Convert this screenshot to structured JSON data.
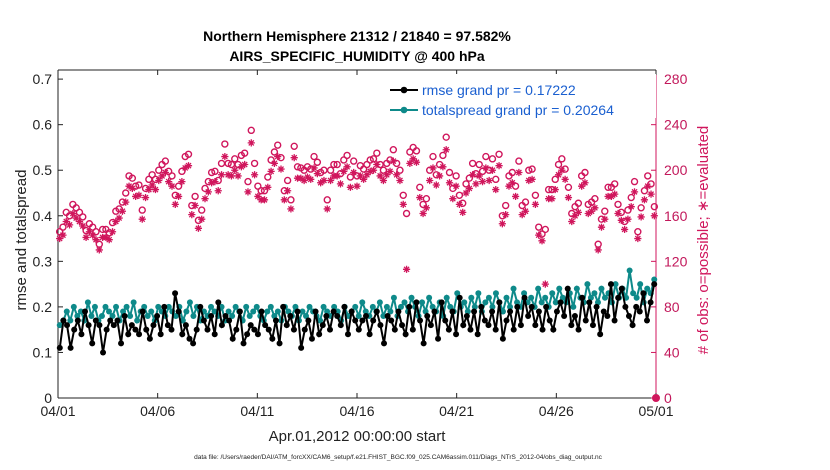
{
  "chart_data": {
    "type": "line",
    "title": "Northern Hemisphere 21312 / 21840 = 97.582%",
    "subtitle": "AIRS_SPECIFIC_HUMIDITY @ 400 hPa",
    "xlabel": "Apr.01,2012 00:00:00 start",
    "ylabel": "rmse and totalspread",
    "y2label": "# of obs: o=possible; ∗=evaluated",
    "footnote": "data file: /Users/raeder/DAI/ATM_forcXX/CAM6_setup/f.e21.FHIST_BGC.f09_025.CAM6assim.011/Diags_NTrS_2012-04/obs_diag_output.nc",
    "xlim": [
      0,
      30
    ],
    "ylim": [
      0,
      0.72
    ],
    "y2lim": [
      0,
      288
    ],
    "xticks": [
      0,
      5,
      10,
      15,
      20,
      25,
      30
    ],
    "xtick_labels": [
      "04/01",
      "04/06",
      "04/11",
      "04/16",
      "04/21",
      "04/26",
      "05/01"
    ],
    "yticks": [
      0,
      0.1,
      0.2,
      0.3,
      0.4,
      0.5,
      0.6,
      0.7
    ],
    "ytick_labels": [
      "0",
      "0.1",
      "0.2",
      "0.3",
      "0.4",
      "0.5",
      "0.6",
      "0.7"
    ],
    "y2ticks": [
      0,
      40,
      80,
      120,
      160,
      200,
      240,
      280
    ],
    "y2tick_labels": [
      "0",
      "40",
      "80",
      "120",
      "160",
      "200",
      "240",
      "280"
    ],
    "grid": false,
    "legend_placement": "top-right",
    "colors": {
      "rmse": "#000000",
      "spread": "#0e8a8a",
      "obs": "#d0165c"
    },
    "series": [
      {
        "name": "rmse grand pr = 0.17222",
        "axis": "left",
        "values": [
          0.11,
          0.17,
          0.16,
          0.11,
          0.15,
          0.17,
          0.14,
          0.19,
          0.16,
          0.12,
          0.17,
          0.16,
          0.1,
          0.15,
          0.17,
          0.16,
          0.17,
          0.12,
          0.18,
          0.14,
          0.16,
          0.15,
          0.14,
          0.19,
          0.15,
          0.13,
          0.16,
          0.18,
          0.14,
          0.2,
          0.16,
          0.15,
          0.23,
          0.19,
          0.14,
          0.16,
          0.13,
          0.12,
          0.15,
          0.2,
          0.17,
          0.15,
          0.18,
          0.14,
          0.21,
          0.16,
          0.18,
          0.17,
          0.13,
          0.15,
          0.19,
          0.12,
          0.14,
          0.16,
          0.15,
          0.14,
          0.19,
          0.16,
          0.15,
          0.13,
          0.17,
          0.12,
          0.2,
          0.16,
          0.18,
          0.15,
          0.19,
          0.11,
          0.15,
          0.17,
          0.13,
          0.19,
          0.14,
          0.16,
          0.18,
          0.15,
          0.19,
          0.18,
          0.16,
          0.2,
          0.14,
          0.19,
          0.17,
          0.15,
          0.17,
          0.18,
          0.14,
          0.17,
          0.19,
          0.16,
          0.12,
          0.18,
          0.17,
          0.15,
          0.19,
          0.16,
          0.14,
          0.2,
          0.15,
          0.21,
          0.17,
          0.12,
          0.18,
          0.16,
          0.19,
          0.13,
          0.21,
          0.17,
          0.15,
          0.19,
          0.14,
          0.22,
          0.16,
          0.18,
          0.15,
          0.19,
          0.14,
          0.2,
          0.17,
          0.16,
          0.19,
          0.15,
          0.21,
          0.13,
          0.17,
          0.19,
          0.15,
          0.2,
          0.16,
          0.22,
          0.18,
          0.2,
          0.16,
          0.19,
          0.15,
          0.2,
          0.17,
          0.15,
          0.19,
          0.21,
          0.18,
          0.24,
          0.16,
          0.18,
          0.15,
          0.22,
          0.17,
          0.21,
          0.16,
          0.2,
          0.14,
          0.19,
          0.18,
          0.25,
          0.17,
          0.22,
          0.24,
          0.2,
          0.18,
          0.16,
          0.2,
          0.19,
          0.23,
          0.17,
          0.21,
          0.25
        ]
      },
      {
        "name": "totalspread grand pr = 0.20264",
        "axis": "left",
        "values": [
          0.16,
          0.17,
          0.19,
          0.17,
          0.2,
          0.18,
          0.19,
          0.17,
          0.21,
          0.18,
          0.2,
          0.17,
          0.18,
          0.2,
          0.19,
          0.18,
          0.2,
          0.17,
          0.19,
          0.2,
          0.18,
          0.21,
          0.17,
          0.19,
          0.2,
          0.18,
          0.19,
          0.17,
          0.2,
          0.19,
          0.18,
          0.2,
          0.19,
          0.18,
          0.2,
          0.17,
          0.19,
          0.21,
          0.18,
          0.2,
          0.17,
          0.19,
          0.18,
          0.2,
          0.19,
          0.18,
          0.2,
          0.17,
          0.19,
          0.18,
          0.2,
          0.19,
          0.17,
          0.2,
          0.18,
          0.19,
          0.2,
          0.18,
          0.17,
          0.19,
          0.2,
          0.18,
          0.19,
          0.17,
          0.2,
          0.19,
          0.18,
          0.2,
          0.17,
          0.19,
          0.18,
          0.2,
          0.19,
          0.18,
          0.17,
          0.2,
          0.19,
          0.18,
          0.2,
          0.19,
          0.17,
          0.2,
          0.18,
          0.19,
          0.2,
          0.18,
          0.21,
          0.19,
          0.18,
          0.2,
          0.19,
          0.21,
          0.18,
          0.2,
          0.19,
          0.22,
          0.18,
          0.2,
          0.21,
          0.19,
          0.22,
          0.2,
          0.18,
          0.21,
          0.19,
          0.22,
          0.2,
          0.19,
          0.21,
          0.18,
          0.22,
          0.2,
          0.19,
          0.23,
          0.2,
          0.21,
          0.19,
          0.22,
          0.2,
          0.23,
          0.19,
          0.21,
          0.22,
          0.2,
          0.23,
          0.21,
          0.19,
          0.22,
          0.2,
          0.24,
          0.21,
          0.2,
          0.23,
          0.21,
          0.22,
          0.2,
          0.24,
          0.21,
          0.22,
          0.2,
          0.23,
          0.21,
          0.24,
          0.22,
          0.21,
          0.23,
          0.2,
          0.24,
          0.22,
          0.21,
          0.25,
          0.22,
          0.23,
          0.21,
          0.24,
          0.22,
          0.23,
          0.21,
          0.25,
          0.22,
          0.24,
          0.22,
          0.28,
          0.23,
          0.22,
          0.25,
          0.21,
          0.24,
          0.23,
          0.26
        ]
      },
      {
        "name": "obs possible",
        "axis": "right",
        "marker": "o",
        "values": [
          146,
          150,
          163,
          160,
          170,
          167,
          163,
          159,
          147,
          153,
          150,
          146,
          135,
          148,
          148,
          145,
          154,
          164,
          166,
          172,
          180,
          195,
          193,
          186,
          187,
          165,
          184,
          192,
          196,
          192,
          200,
          205,
          208,
          199,
          195,
          178,
          186,
          199,
          212,
          214,
          169,
          177,
          156,
          165,
          184,
          190,
          198,
          199,
          191,
          206,
          223,
          206,
          205,
          210,
          205,
          213,
          215,
          190,
          235,
          206,
          186,
          182,
          182,
          194,
          209,
          216,
          222,
          211,
          182,
          191,
          174,
          221,
          203,
          202,
          200,
          203,
          201,
          212,
          207,
          198,
          200,
          174,
          200,
          205,
          205,
          197,
          209,
          213,
          194,
          208,
          195,
          204,
          201,
          205,
          209,
          210,
          215,
          205,
          200,
          206,
          209,
          218,
          206,
          200,
          178,
          162,
          216,
          220,
          217,
          185,
          170,
          175,
          200,
          212,
          196,
          205,
          213,
          229,
          198,
          184,
          195,
          178,
          171,
          188,
          193,
          206,
          197,
          205,
          199,
          212,
          200,
          210,
          192,
          214,
          160,
          169,
          195,
          198,
          186,
          208,
          169,
          172,
          200,
          201,
          178,
          150,
          144,
          148,
          183,
          183,
          192,
          205,
          210,
          201,
          185,
          162,
          168,
          171,
          195,
          198,
          170,
          172,
          175,
          135,
          157,
          164,
          185,
          185,
          188,
          170,
          163,
          155,
          165,
          176,
          190,
          146,
          167,
          182,
          195,
          188,
          168
        ]
      },
      {
        "name": "obs evaluated",
        "axis": "right",
        "marker": "*",
        "values": [
          140,
          143,
          155,
          152,
          162,
          158,
          155,
          151,
          141,
          146,
          143,
          139,
          130,
          141,
          141,
          139,
          146,
          155,
          158,
          164,
          172,
          186,
          184,
          177,
          178,
          157,
          176,
          183,
          187,
          183,
          191,
          195,
          198,
          190,
          186,
          170,
          177,
          190,
          202,
          204,
          161,
          169,
          149,
          157,
          175,
          181,
          189,
          190,
          182,
          196,
          212,
          196,
          195,
          200,
          195,
          203,
          205,
          181,
          224,
          196,
          177,
          174,
          174,
          185,
          199,
          206,
          212,
          201,
          174,
          182,
          166,
          211,
          193,
          193,
          191,
          194,
          192,
          202,
          197,
          189,
          191,
          166,
          191,
          195,
          195,
          188,
          199,
          203,
          185,
          198,
          186,
          195,
          192,
          196,
          199,
          200,
          205,
          195,
          191,
          196,
          199,
          208,
          196,
          191,
          170,
          113,
          206,
          210,
          207,
          176,
          162,
          167,
          191,
          202,
          187,
          195,
          203,
          218,
          189,
          175,
          186,
          170,
          163,
          180,
          184,
          196,
          188,
          195,
          190,
          202,
          191,
          200,
          183,
          204,
          153,
          161,
          186,
          189,
          177,
          198,
          161,
          164,
          191,
          192,
          170,
          143,
          138,
          100,
          175,
          175,
          183,
          196,
          200,
          192,
          176,
          155,
          160,
          163,
          186,
          189,
          162,
          164,
          167,
          130,
          150,
          157,
          177,
          177,
          179,
          162,
          156,
          148,
          157,
          168,
          181,
          140,
          159,
          174,
          186,
          179,
          160
        ]
      }
    ]
  }
}
